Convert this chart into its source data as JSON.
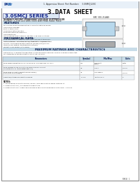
{
  "title": "3.DATA SHEET",
  "series_title": "3.0SMCJ SERIES",
  "manufacturer": "SURFACE MOUNT TRANSIENT VOLTAGE SUPPRESSOR",
  "subtitle": "PCJ/MCE : 5.0 to 220 Volts 3000 Watt Peak Power Pulse",
  "section1": "FEATURES",
  "features": [
    "For surface mounted applications in order to optimize board space.",
    "Low-profile package.",
    "Built-in strain relief.",
    "Glass passivation junction.",
    "Excellent clamping capability.",
    "Low inductance.",
    "Fast response time: typically less than 1 ps from 0 V to BV min.",
    "Typical IR parameter: 1.0 uA max (typ).",
    "High temperature soldering: 260°C/10 seconds at terminals.",
    "Plastic package: has Underwriters Laboratory Flammability Classification 94V-0."
  ],
  "section2": "MECHANICAL DATA",
  "mech_data": [
    "Lead material: Iron plated Nickel/Copper with Tin/Lead Alloy per MIL-STD-202.",
    "Polarity: Color band denotes positive (anode) end (only for uni-directional).",
    "Standard Packaging: 800/tape&reel (TR/TR).",
    "Weight: 0.540 grams (0.36 grms)."
  ],
  "section3": "MAXIMUM RATINGS AND CHARACTERISTICS",
  "table_headers": [
    "Symbol",
    "Min/Max",
    "Units"
  ],
  "part_number": "SMC (DO-214AB)",
  "part_label": "3.0SMCJ120C",
  "comp_label": "SMC (DO-214AB)",
  "bg_color": "#ffffff",
  "header_bg": "#d0e8f0",
  "box_color": "#aad4e8",
  "border_color": "#888888",
  "logo_color": "#2255aa",
  "title_color": "#000000",
  "section_bg": "#c8dce8",
  "table_rows": [
    [
      "Peak Power Dissipation on Tp=10x1000 us, Tc=measuring, I.e. Fig. 1",
      "P_PPM",
      "3000/Watt (SMC)",
      "Watts"
    ],
    [
      "Peak Forward Surge Current (see surge and over-current characteristics in latest datasheets 4.3)",
      "I_FSM",
      "100 A",
      "A/cycle"
    ],
    [
      "Peak Pulse Current (symmetrical waveform): 8.3ms/half cycle 1Hz/g.e.",
      "I_PPP",
      "See Table 1",
      "A/cycle"
    ],
    [
      "Operating/Storage Temperature Range",
      "T_J, T_STG",
      "-55 to 175°C",
      "°C"
    ]
  ],
  "notes": [
    "1. Specifications subject to review, see Fig. 1 and specifications Pacific Data Fig. 1t.",
    "2. Measured at 1 mA / 10 specified temperatures.",
    "3. Measured at 1 mA. Surge half-sine wave or equivalent square wave, duty cycle = 4 pulses per second maximum."
  ],
  "footer": "PAGE  1"
}
